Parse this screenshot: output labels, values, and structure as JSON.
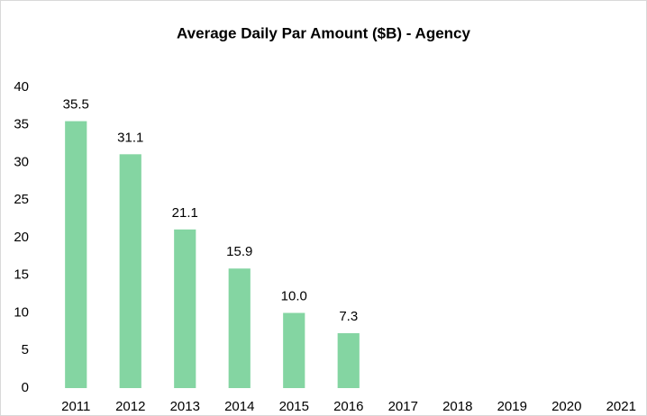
{
  "chart_data": {
    "type": "bar",
    "title": "Average Daily Par Amount ($B) - Agency",
    "categories": [
      "2011",
      "2012",
      "2013",
      "2014",
      "2015",
      "2016",
      "2017",
      "2018",
      "2019",
      "2020",
      "2021"
    ],
    "values": [
      35.5,
      31.1,
      21.1,
      15.9,
      10.0,
      7.3,
      null,
      null,
      null,
      null,
      null
    ],
    "value_labels": [
      "35.5",
      "31.1",
      "21.1",
      "15.9",
      "10.0",
      "7.3",
      null,
      null,
      null,
      null,
      null
    ],
    "color": "#84d5a2",
    "ylim": [
      0,
      40
    ],
    "yticks": [
      0,
      5,
      10,
      15,
      20,
      25,
      30,
      35,
      40
    ],
    "grid": false
  }
}
